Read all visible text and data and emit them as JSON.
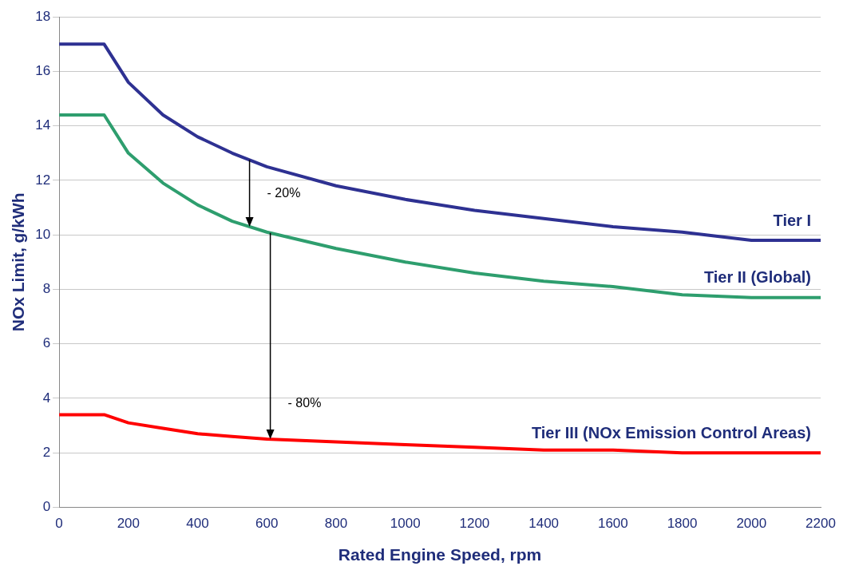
{
  "chart_data": {
    "type": "line",
    "xlabel": "Rated Engine Speed, rpm",
    "ylabel": "NOx Limit, g/kWh",
    "x": [
      0,
      130,
      200,
      300,
      400,
      500,
      600,
      800,
      1000,
      1200,
      1400,
      1600,
      1800,
      2000,
      2200
    ],
    "series": [
      {
        "name": "Tier I",
        "color": "#2e3192",
        "values": [
          17,
          17,
          15.6,
          14.4,
          13.6,
          13.0,
          12.5,
          11.8,
          11.3,
          10.9,
          10.6,
          10.3,
          10.1,
          9.8,
          9.8
        ]
      },
      {
        "name": "Tier II (Global)",
        "color": "#2e9e6e",
        "values": [
          14.4,
          14.4,
          13.0,
          11.9,
          11.1,
          10.5,
          10.1,
          9.5,
          9.0,
          8.6,
          8.3,
          8.1,
          7.8,
          7.7,
          7.7
        ]
      },
      {
        "name": "Tier III (NOx Emission Control Areas)",
        "color": "#ff0000",
        "values": [
          3.4,
          3.4,
          3.1,
          2.9,
          2.7,
          2.6,
          2.5,
          2.4,
          2.3,
          2.2,
          2.1,
          2.1,
          2.0,
          2.0,
          2.0
        ]
      }
    ],
    "annotations": [
      {
        "text": "- 20%",
        "x": 550,
        "y": 10.3
      },
      {
        "text": "- 80%",
        "x": 610,
        "y": 2.5
      }
    ],
    "xlim": [
      0,
      2200
    ],
    "xticks": [
      0,
      200,
      400,
      600,
      800,
      1000,
      1200,
      1400,
      1600,
      1800,
      2000,
      2200
    ],
    "ylim": [
      0,
      18
    ],
    "yticks": [
      0,
      2,
      4,
      6,
      8,
      10,
      12,
      14,
      16,
      18
    ],
    "grid": "y",
    "legend": false,
    "marker": "none",
    "line_style": "solid"
  }
}
